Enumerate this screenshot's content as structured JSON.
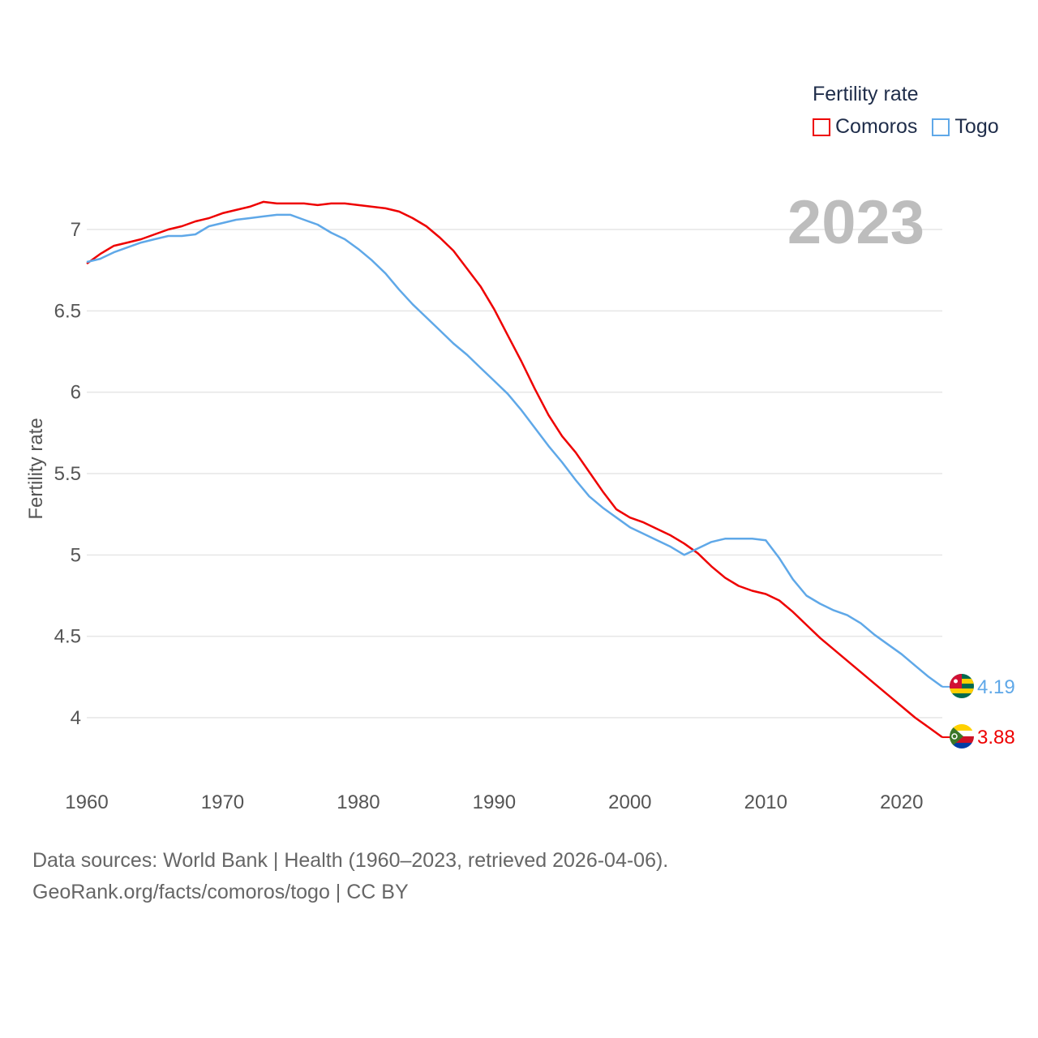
{
  "legend": {
    "title": "Fertility rate",
    "items": [
      {
        "label": "Comoros",
        "color": "#ee0000"
      },
      {
        "label": "Togo",
        "color": "#5fa8e8"
      }
    ]
  },
  "current_year": "2023",
  "footer": {
    "line1": "Data sources: World Bank | Health (1960–2023, retrieved 2026-04-06).",
    "line2": "GeoRank.org/facts/comoros/togo | CC BY"
  },
  "chart_data": {
    "type": "line",
    "title": "",
    "xlabel": "",
    "ylabel": "Fertility rate",
    "xlim": [
      1960,
      2023
    ],
    "ylim": [
      3.75,
      7.35
    ],
    "grid": true,
    "legend_position": "top-right",
    "x_ticks": [
      1960,
      1970,
      1980,
      1990,
      2000,
      2010,
      2020
    ],
    "y_ticks": [
      4,
      4.5,
      5,
      5.5,
      6,
      6.5,
      7
    ],
    "x": [
      1960,
      1961,
      1962,
      1963,
      1964,
      1965,
      1966,
      1967,
      1968,
      1969,
      1970,
      1971,
      1972,
      1973,
      1974,
      1975,
      1976,
      1977,
      1978,
      1979,
      1980,
      1981,
      1982,
      1983,
      1984,
      1985,
      1986,
      1987,
      1988,
      1989,
      1990,
      1991,
      1992,
      1993,
      1994,
      1995,
      1996,
      1997,
      1998,
      1999,
      2000,
      2001,
      2002,
      2003,
      2004,
      2005,
      2006,
      2007,
      2008,
      2009,
      2010,
      2011,
      2012,
      2013,
      2014,
      2015,
      2016,
      2017,
      2018,
      2019,
      2020,
      2021,
      2022,
      2023
    ],
    "series": [
      {
        "name": "Comoros",
        "color": "#ee0000",
        "end_label": "3.88",
        "values": [
          6.79,
          6.85,
          6.9,
          6.92,
          6.94,
          6.97,
          7.0,
          7.02,
          7.05,
          7.07,
          7.1,
          7.12,
          7.14,
          7.17,
          7.16,
          7.16,
          7.16,
          7.15,
          7.16,
          7.16,
          7.15,
          7.14,
          7.13,
          7.11,
          7.07,
          7.02,
          6.95,
          6.87,
          6.76,
          6.65,
          6.51,
          6.35,
          6.19,
          6.02,
          5.86,
          5.73,
          5.63,
          5.51,
          5.39,
          5.28,
          5.23,
          5.2,
          5.16,
          5.12,
          5.07,
          5.01,
          4.93,
          4.86,
          4.81,
          4.78,
          4.76,
          4.72,
          4.65,
          4.57,
          4.49,
          4.42,
          4.35,
          4.28,
          4.21,
          4.14,
          4.07,
          4.0,
          3.94,
          3.88
        ]
      },
      {
        "name": "Togo",
        "color": "#5fa8e8",
        "end_label": "4.19",
        "values": [
          6.8,
          6.82,
          6.86,
          6.89,
          6.92,
          6.94,
          6.96,
          6.96,
          6.97,
          7.02,
          7.04,
          7.06,
          7.07,
          7.08,
          7.09,
          7.09,
          7.06,
          7.03,
          6.98,
          6.94,
          6.88,
          6.81,
          6.73,
          6.63,
          6.54,
          6.46,
          6.38,
          6.3,
          6.23,
          6.15,
          6.07,
          5.99,
          5.89,
          5.78,
          5.67,
          5.57,
          5.46,
          5.36,
          5.29,
          5.23,
          5.17,
          5.13,
          5.09,
          5.05,
          5.0,
          5.04,
          5.08,
          5.1,
          5.1,
          5.1,
          5.09,
          4.98,
          4.85,
          4.75,
          4.7,
          4.66,
          4.63,
          4.58,
          4.51,
          4.45,
          4.39,
          4.32,
          4.25,
          4.19
        ]
      }
    ]
  }
}
